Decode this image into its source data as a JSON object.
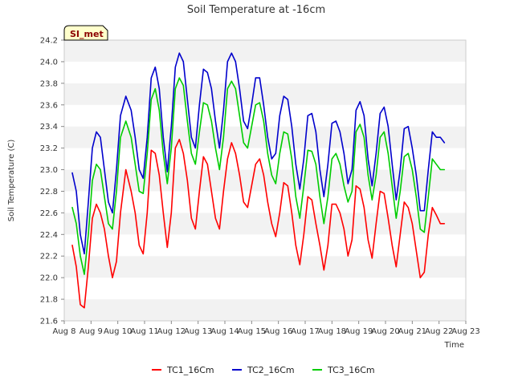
{
  "chart_data": {
    "type": "line",
    "title": "Soil Temperature at -16cm",
    "xlabel": "Time",
    "ylabel": "Soil Temperature (C)",
    "badge": "SI_met",
    "ylim": [
      21.6,
      24.2
    ],
    "xlim": [
      8,
      23
    ],
    "y_ticks": [
      21.6,
      21.8,
      22.0,
      22.2,
      22.4,
      22.6,
      22.8,
      23.0,
      23.2,
      23.4,
      23.6,
      23.8,
      24.0,
      24.2
    ],
    "y_tick_labels": [
      "21.6",
      "21.8",
      "22.0",
      "22.2",
      "22.4",
      "22.6",
      "22.8",
      "23.0",
      "23.2",
      "23.4",
      "23.6",
      "23.8",
      "24.0",
      "24.2"
    ],
    "x_ticks": [
      8,
      9,
      10,
      11,
      12,
      13,
      14,
      15,
      16,
      17,
      18,
      19,
      20,
      21,
      22,
      23
    ],
    "x_tick_labels": [
      "Aug 8",
      "Aug 9",
      "Aug 10",
      "Aug 11",
      "Aug 12",
      "Aug 13",
      "Aug 14",
      "Aug 15",
      "Aug 16",
      "Aug 17",
      "Aug 18",
      "Aug 19",
      "Aug 20",
      "Aug 21",
      "Aug 22",
      "Aug 23"
    ],
    "grid": "horizontal-bands",
    "legend_position": "bottom",
    "series": [
      {
        "name": "TC1_16Cm",
        "color": "#ff0000",
        "x": [
          8.3,
          8.45,
          8.6,
          8.75,
          8.9,
          9.05,
          9.2,
          9.35,
          9.5,
          9.65,
          9.8,
          9.95,
          10.1,
          10.3,
          10.5,
          10.65,
          10.8,
          10.95,
          11.1,
          11.25,
          11.4,
          11.55,
          11.7,
          11.85,
          12.0,
          12.15,
          12.3,
          12.45,
          12.6,
          12.75,
          12.9,
          13.05,
          13.2,
          13.35,
          13.5,
          13.65,
          13.8,
          13.95,
          14.1,
          14.25,
          14.4,
          14.55,
          14.7,
          14.85,
          15.0,
          15.15,
          15.3,
          15.45,
          15.6,
          15.75,
          15.9,
          16.05,
          16.2,
          16.35,
          16.5,
          16.65,
          16.8,
          16.95,
          17.1,
          17.25,
          17.4,
          17.55,
          17.7,
          17.85,
          18.0,
          18.15,
          18.3,
          18.45,
          18.6,
          18.75,
          18.9,
          19.05,
          19.2,
          19.35,
          19.5,
          19.65,
          19.8,
          19.95,
          20.1,
          20.25,
          20.4,
          20.55,
          20.7,
          20.85,
          21.0,
          21.15,
          21.3,
          21.45,
          21.6,
          21.75,
          21.9,
          22.05,
          22.2
        ],
        "values": [
          22.3,
          22.1,
          21.75,
          21.72,
          22.1,
          22.55,
          22.68,
          22.6,
          22.45,
          22.2,
          22.0,
          22.15,
          22.6,
          23.0,
          22.8,
          22.6,
          22.3,
          22.22,
          22.6,
          23.18,
          23.15,
          22.95,
          22.6,
          22.28,
          22.6,
          23.2,
          23.28,
          23.15,
          22.9,
          22.55,
          22.45,
          22.8,
          23.12,
          23.05,
          22.8,
          22.55,
          22.45,
          22.8,
          23.1,
          23.25,
          23.15,
          22.95,
          22.7,
          22.65,
          22.85,
          23.05,
          23.1,
          22.95,
          22.7,
          22.5,
          22.38,
          22.6,
          22.88,
          22.85,
          22.6,
          22.3,
          22.12,
          22.4,
          22.75,
          22.72,
          22.5,
          22.3,
          22.07,
          22.3,
          22.68,
          22.68,
          22.6,
          22.45,
          22.2,
          22.35,
          22.85,
          22.82,
          22.65,
          22.35,
          22.18,
          22.5,
          22.8,
          22.78,
          22.55,
          22.3,
          22.1,
          22.4,
          22.7,
          22.65,
          22.5,
          22.25,
          22.0,
          22.05,
          22.4,
          22.65,
          22.58,
          22.5,
          22.5
        ]
      },
      {
        "name": "TC2_16Cm",
        "color": "#0000cc",
        "x": [
          8.3,
          8.45,
          8.6,
          8.75,
          8.9,
          9.05,
          9.2,
          9.35,
          9.5,
          9.65,
          9.8,
          9.95,
          10.1,
          10.3,
          10.5,
          10.65,
          10.8,
          10.95,
          11.1,
          11.25,
          11.4,
          11.55,
          11.7,
          11.85,
          12.0,
          12.15,
          12.3,
          12.45,
          12.6,
          12.75,
          12.9,
          13.05,
          13.2,
          13.35,
          13.5,
          13.65,
          13.8,
          13.95,
          14.1,
          14.25,
          14.4,
          14.55,
          14.7,
          14.85,
          15.0,
          15.15,
          15.3,
          15.45,
          15.6,
          15.75,
          15.9,
          16.05,
          16.2,
          16.35,
          16.5,
          16.65,
          16.8,
          16.95,
          17.1,
          17.25,
          17.4,
          17.55,
          17.7,
          17.85,
          18.0,
          18.15,
          18.3,
          18.45,
          18.6,
          18.75,
          18.9,
          19.05,
          19.2,
          19.35,
          19.5,
          19.65,
          19.8,
          19.95,
          20.1,
          20.25,
          20.4,
          20.55,
          20.7,
          20.85,
          21.0,
          21.15,
          21.3,
          21.45,
          21.6,
          21.75,
          21.9,
          22.05,
          22.2
        ],
        "values": [
          22.97,
          22.8,
          22.4,
          22.22,
          22.7,
          23.2,
          23.35,
          23.3,
          23.0,
          22.7,
          22.6,
          23.0,
          23.5,
          23.68,
          23.55,
          23.3,
          23.0,
          22.92,
          23.3,
          23.85,
          23.95,
          23.75,
          23.3,
          22.98,
          23.4,
          23.95,
          24.08,
          24.0,
          23.65,
          23.3,
          23.2,
          23.6,
          23.93,
          23.9,
          23.75,
          23.45,
          23.2,
          23.55,
          24.0,
          24.08,
          24.0,
          23.75,
          23.45,
          23.38,
          23.6,
          23.85,
          23.85,
          23.6,
          23.3,
          23.1,
          23.15,
          23.5,
          23.68,
          23.65,
          23.4,
          23.05,
          22.82,
          23.1,
          23.5,
          23.52,
          23.35,
          23.0,
          22.75,
          23.05,
          23.43,
          23.45,
          23.35,
          23.15,
          22.87,
          23.0,
          23.55,
          23.63,
          23.5,
          23.1,
          22.85,
          23.15,
          23.52,
          23.58,
          23.4,
          23.05,
          22.72,
          23.0,
          23.38,
          23.4,
          23.2,
          22.95,
          22.62,
          22.62,
          23.0,
          23.35,
          23.3,
          23.3,
          23.25
        ]
      },
      {
        "name": "TC3_16Cm",
        "color": "#00cc00",
        "x": [
          8.3,
          8.45,
          8.6,
          8.75,
          8.9,
          9.05,
          9.2,
          9.35,
          9.5,
          9.65,
          9.8,
          9.95,
          10.1,
          10.3,
          10.5,
          10.65,
          10.8,
          10.95,
          11.1,
          11.25,
          11.4,
          11.55,
          11.7,
          11.85,
          12.0,
          12.15,
          12.3,
          12.45,
          12.6,
          12.75,
          12.9,
          13.05,
          13.2,
          13.35,
          13.5,
          13.65,
          13.8,
          13.95,
          14.1,
          14.25,
          14.4,
          14.55,
          14.7,
          14.85,
          15.0,
          15.15,
          15.3,
          15.45,
          15.6,
          15.75,
          15.9,
          16.05,
          16.2,
          16.35,
          16.5,
          16.65,
          16.8,
          16.95,
          17.1,
          17.25,
          17.4,
          17.55,
          17.7,
          17.85,
          18.0,
          18.15,
          18.3,
          18.45,
          18.6,
          18.75,
          18.9,
          19.05,
          19.2,
          19.35,
          19.5,
          19.65,
          19.8,
          19.95,
          20.1,
          20.25,
          20.4,
          20.55,
          20.7,
          20.85,
          21.0,
          21.15,
          21.3,
          21.45,
          21.6,
          21.75,
          21.9,
          22.05,
          22.2
        ],
        "values": [
          22.65,
          22.5,
          22.2,
          22.03,
          22.4,
          22.9,
          23.05,
          23.0,
          22.75,
          22.5,
          22.45,
          22.8,
          23.3,
          23.45,
          23.3,
          23.05,
          22.8,
          22.78,
          23.15,
          23.65,
          23.75,
          23.55,
          23.15,
          22.87,
          23.2,
          23.75,
          23.85,
          23.78,
          23.45,
          23.15,
          23.05,
          23.35,
          23.62,
          23.6,
          23.45,
          23.2,
          23.0,
          23.3,
          23.75,
          23.82,
          23.75,
          23.5,
          23.25,
          23.2,
          23.4,
          23.6,
          23.62,
          23.45,
          23.15,
          22.95,
          22.87,
          23.15,
          23.35,
          23.33,
          23.1,
          22.75,
          22.55,
          22.85,
          23.18,
          23.17,
          23.05,
          22.75,
          22.5,
          22.75,
          23.1,
          23.15,
          23.05,
          22.85,
          22.7,
          22.8,
          23.35,
          23.42,
          23.3,
          22.95,
          22.72,
          22.95,
          23.3,
          23.35,
          23.15,
          22.85,
          22.55,
          22.8,
          23.12,
          23.15,
          23.0,
          22.75,
          22.45,
          22.42,
          22.75,
          23.1,
          23.05,
          23.0,
          23.0
        ]
      }
    ]
  }
}
